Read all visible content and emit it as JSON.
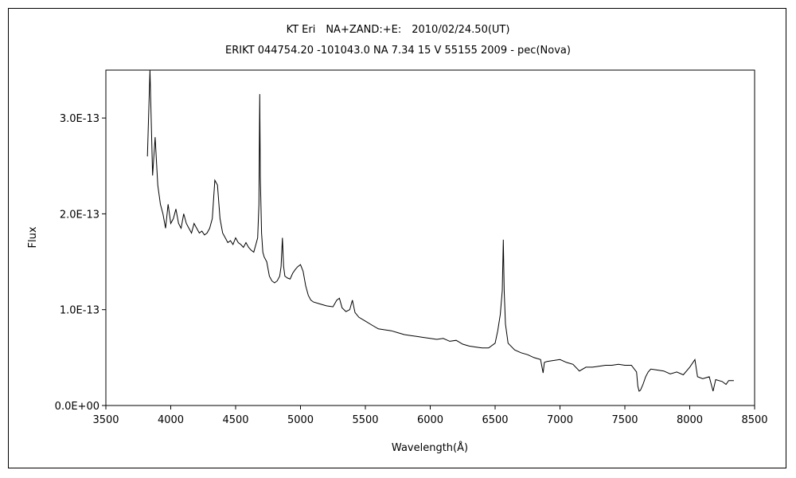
{
  "chart_data": {
    "type": "line",
    "title": "KT Eri　NA+ZAND:+E:　2010/02/24.50(UT)",
    "subtitle": "ERIKT 044754.20 -101043.0 NA 7.34 15 V 55155 2009 - pec(Nova)",
    "xlabel": "Wavelength(Å)",
    "ylabel": "Flux",
    "xlim": [
      3500,
      8500
    ],
    "ylim": [
      0,
      3.5e-13
    ],
    "x_ticks": [
      3500,
      4000,
      4500,
      5000,
      5500,
      6000,
      6500,
      7000,
      7500,
      8000,
      8500
    ],
    "x_tick_labels": [
      "3500",
      "4000",
      "4500",
      "5000",
      "5500",
      "6000",
      "6500",
      "7000",
      "7500",
      "8000",
      "8500"
    ],
    "y_ticks": [
      0,
      1e-13,
      2e-13,
      3e-13
    ],
    "y_tick_labels": [
      "0.0E+00",
      "1.0E-13",
      "2.0E-13",
      "3.0E-13"
    ],
    "grid": false,
    "legend": "none",
    "line_color": "#000000",
    "series": [
      {
        "x": [
          3820,
          3840,
          3860,
          3880,
          3900,
          3920,
          3940,
          3960,
          3980,
          4000,
          4020,
          4040,
          4060,
          4080,
          4100,
          4120,
          4140,
          4160,
          4180,
          4200,
          4220,
          4240,
          4260,
          4280,
          4300,
          4320,
          4340,
          4360,
          4380,
          4400,
          4420,
          4440,
          4460,
          4480,
          4500,
          4520,
          4540,
          4560,
          4580,
          4600,
          4620,
          4640,
          4660,
          4670,
          4680,
          4686,
          4690,
          4700,
          4710,
          4720,
          4740,
          4760,
          4780,
          4800,
          4820,
          4840,
          4850,
          4861,
          4870,
          4880,
          4900,
          4920,
          4940,
          4960,
          4980,
          5000,
          5020,
          5040,
          5060,
          5080,
          5100,
          5150,
          5200,
          5250,
          5280,
          5300,
          5320,
          5350,
          5380,
          5400,
          5420,
          5450,
          5500,
          5550,
          5600,
          5650,
          5700,
          5750,
          5800,
          5850,
          5900,
          5950,
          6000,
          6050,
          6100,
          6150,
          6200,
          6250,
          6300,
          6350,
          6400,
          6450,
          6500,
          6520,
          6540,
          6555,
          6563,
          6570,
          6580,
          6600,
          6650,
          6700,
          6750,
          6800,
          6850,
          6870,
          6880,
          6900,
          6950,
          7000,
          7050,
          7100,
          7150,
          7200,
          7250,
          7300,
          7350,
          7400,
          7450,
          7500,
          7550,
          7590,
          7600,
          7610,
          7620,
          7640,
          7660,
          7680,
          7700,
          7750,
          7800,
          7850,
          7900,
          7950,
          8000,
          8040,
          8060,
          8100,
          8150,
          8180,
          8200,
          8250,
          8280,
          8300,
          8340
        ],
        "y": [
          2.6e-13,
          3.5e-13,
          2.4e-13,
          2.8e-13,
          2.3e-13,
          2.1e-13,
          2e-13,
          1.85e-13,
          2.1e-13,
          1.9e-13,
          1.95e-13,
          2.05e-13,
          1.9e-13,
          1.85e-13,
          2e-13,
          1.9e-13,
          1.85e-13,
          1.8e-13,
          1.9e-13,
          1.85e-13,
          1.8e-13,
          1.82e-13,
          1.78e-13,
          1.8e-13,
          1.85e-13,
          1.95e-13,
          2.35e-13,
          2.3e-13,
          1.95e-13,
          1.8e-13,
          1.75e-13,
          1.7e-13,
          1.72e-13,
          1.68e-13,
          1.75e-13,
          1.7e-13,
          1.68e-13,
          1.65e-13,
          1.7e-13,
          1.65e-13,
          1.62e-13,
          1.6e-13,
          1.7e-13,
          1.75e-13,
          2.1e-13,
          3.25e-13,
          2.4e-13,
          1.8e-13,
          1.6e-13,
          1.55e-13,
          1.5e-13,
          1.35e-13,
          1.3e-13,
          1.28e-13,
          1.3e-13,
          1.35e-13,
          1.45e-13,
          1.75e-13,
          1.45e-13,
          1.35e-13,
          1.33e-13,
          1.32e-13,
          1.38e-13,
          1.42e-13,
          1.45e-13,
          1.47e-13,
          1.4e-13,
          1.25e-13,
          1.15e-13,
          1.1e-13,
          1.08e-13,
          1.06e-13,
          1.04e-13,
          1.03e-13,
          1.1e-13,
          1.12e-13,
          1.02e-13,
          9.8e-14,
          1e-13,
          1.1e-13,
          9.7e-14,
          9.2e-14,
          8.8e-14,
          8.4e-14,
          8e-14,
          7.9e-14,
          7.8e-14,
          7.6e-14,
          7.4e-14,
          7.3e-14,
          7.2e-14,
          7.1e-14,
          7e-14,
          6.9e-14,
          7e-14,
          6.7e-14,
          6.8e-14,
          6.4e-14,
          6.2e-14,
          6.1e-14,
          6e-14,
          6e-14,
          6.5e-14,
          7.8e-14,
          9.5e-14,
          1.2e-13,
          1.73e-13,
          1.2e-13,
          8.5e-14,
          6.5e-14,
          5.8e-14,
          5.5e-14,
          5.3e-14,
          5e-14,
          4.8e-14,
          3.4e-14,
          4.5e-14,
          4.6e-14,
          4.7e-14,
          4.8e-14,
          4.5e-14,
          4.3e-14,
          3.6e-14,
          4e-14,
          4e-14,
          4.1e-14,
          4.2e-14,
          4.2e-14,
          4.3e-14,
          4.2e-14,
          4.2e-14,
          3.5e-14,
          2e-14,
          1.5e-14,
          1.6e-14,
          2.2e-14,
          3e-14,
          3.5e-14,
          3.8e-14,
          3.7e-14,
          3.6e-14,
          3.3e-14,
          3.5e-14,
          3.2e-14,
          4e-14,
          4.8e-14,
          3e-14,
          2.8e-14,
          3e-14,
          1.5e-14,
          2.7e-14,
          2.5e-14,
          2.2e-14,
          2.6e-14,
          2.6e-14
        ]
      }
    ]
  }
}
